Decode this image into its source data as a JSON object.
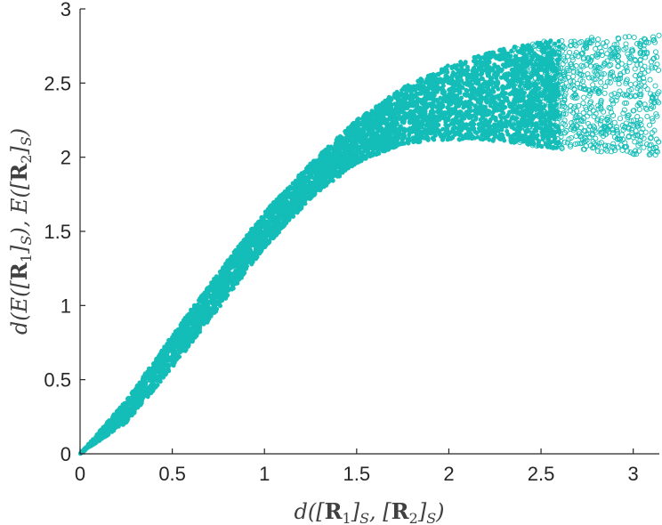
{
  "chart_data": {
    "type": "scatter",
    "title": "",
    "xlabel": "d([R1]S, [R2]S)",
    "ylabel": "d(E([R1]S), E([R2]S))",
    "xlim": [
      0,
      3.14159
    ],
    "ylim": [
      0,
      3
    ],
    "xticks": [
      0,
      0.5,
      1,
      1.5,
      2,
      2.5,
      3
    ],
    "xtick_labels": [
      "0",
      "0.5",
      "1",
      "1.5",
      "2",
      "2.5",
      "3"
    ],
    "yticks": [
      0,
      0.5,
      1,
      1.5,
      2,
      2.5,
      3
    ],
    "ytick_labels": [
      "0",
      "0.5",
      "1",
      "1.5",
      "2",
      "2.5",
      "3"
    ],
    "grid": false,
    "legend": "none",
    "marker": "open-circle",
    "color": "#14BDB8",
    "envelope": {
      "x": [
        0,
        0.25,
        0.5,
        0.75,
        1.0,
        1.25,
        1.5,
        1.75,
        2.0,
        2.25,
        2.5,
        2.75,
        3.0,
        3.14
      ],
      "upper": [
        0,
        0.36,
        0.8,
        1.22,
        1.63,
        1.96,
        2.25,
        2.47,
        2.62,
        2.72,
        2.78,
        2.81,
        2.82,
        2.83
      ],
      "lower": [
        0,
        0.21,
        0.58,
        0.98,
        1.39,
        1.72,
        1.96,
        2.09,
        2.12,
        2.11,
        2.07,
        2.04,
        2.02,
        2.01
      ]
    }
  }
}
